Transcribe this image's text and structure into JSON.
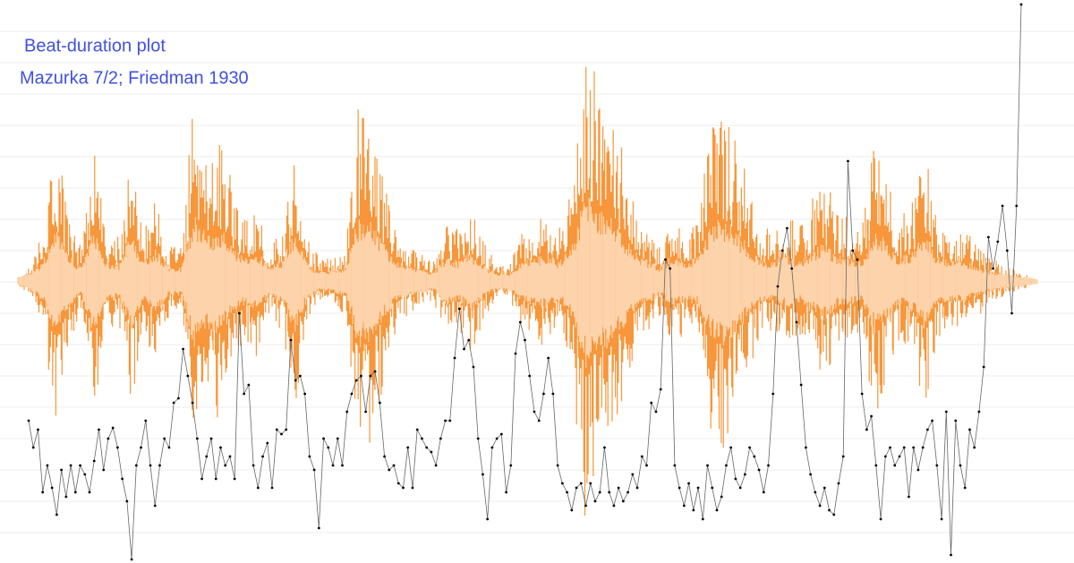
{
  "chart_data": {
    "type": "line",
    "title": "Beat-duration plot",
    "subtitle": "Mazurka 7/2; Friedman 1930",
    "title_color": "#3f51e0",
    "color": "#666666",
    "marker_color": "#000000",
    "ylim": [
      0,
      629
    ],
    "yticks": [
      34,
      69,
      104,
      139,
      174,
      209,
      244,
      279,
      314,
      349,
      384,
      419,
      454,
      489,
      524,
      559,
      594
    ],
    "grid": true,
    "values": [
      159,
      129,
      149,
      79,
      109,
      84,
      54,
      104,
      74,
      109,
      79,
      109,
      99,
      79,
      114,
      149,
      104,
      139,
      151,
      129,
      94,
      69,
      4,
      109,
      129,
      159,
      109,
      64,
      109,
      139,
      129,
      179,
      184,
      239,
      209,
      179,
      139,
      94,
      119,
      139,
      94,
      129,
      109,
      119,
      94,
      279,
      189,
      199,
      109,
      84,
      119,
      134,
      84,
      149,
      144,
      149,
      249,
      204,
      209,
      189,
      119,
      104,
      39,
      139,
      129,
      109,
      139,
      109,
      169,
      189,
      204,
      209,
      169,
      209,
      214,
      179,
      119,
      104,
      109,
      89,
      84,
      129,
      84,
      149,
      139,
      129,
      124,
      109,
      139,
      159,
      159,
      229,
      284,
      239,
      249,
      219,
      139,
      99,
      49,
      129,
      139,
      144,
      79,
      109,
      234,
      269,
      249,
      209,
      169,
      159,
      189,
      229,
      189,
      109,
      89,
      79,
      59,
      84,
      89,
      64,
      89,
      69,
      79,
      129,
      79,
      64,
      84,
      69,
      79,
      99,
      84,
      119,
      109,
      179,
      169,
      194,
      339,
      329,
      109,
      84,
      64,
      89,
      59,
      84,
      49,
      109,
      84,
      59,
      74,
      109,
      129,
      94,
      84,
      99,
      129,
      119,
      104,
      79,
      109,
      189,
      309,
      349,
      374,
      329,
      269,
      199,
      129,
      99,
      79,
      64,
      84,
      59,
      54,
      89,
      119,
      449,
      349,
      339,
      189,
      149,
      164,
      109,
      49,
      119,
      129,
      109,
      119,
      129,
      74,
      129,
      104,
      129,
      149,
      159,
      109,
      49,
      169,
      9,
      159,
      109,
      84,
      149,
      129,
      169,
      219,
      364,
      329,
      359,
      399,
      349,
      279,
      399,
      624
    ],
    "waveform": {
      "color": "#f7963a",
      "inner_color": "#fdd3ab",
      "values": [
        5,
        20,
        60,
        170,
        80,
        40,
        160,
        60,
        50,
        150,
        60,
        100,
        40,
        40,
        215,
        140,
        170,
        110,
        70,
        90,
        40,
        60,
        165,
        50,
        25,
        30,
        40,
        200,
        215,
        120,
        60,
        40,
        30,
        25,
        70,
        60,
        90,
        45,
        20,
        20,
        60,
        70,
        80,
        60,
        110,
        280,
        230,
        200,
        150,
        90,
        60,
        40,
        80,
        60,
        70,
        180,
        200,
        160,
        110,
        60,
        60,
        80,
        60,
        90,
        120,
        80,
        70,
        60,
        160,
        120,
        70,
        90,
        155,
        70,
        60,
        60,
        45,
        30,
        20,
        15,
        8,
        0
      ]
    }
  }
}
